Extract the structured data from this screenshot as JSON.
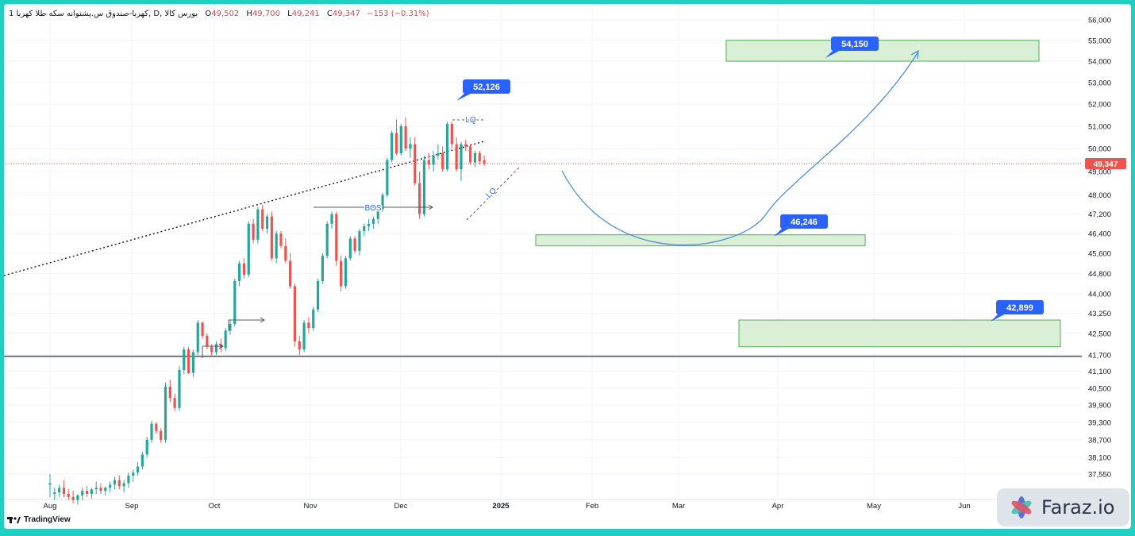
{
  "header": {
    "symbol": "1 کهربا-صندوق س.پشتوانه سکه طلا کهربا",
    "interval": "D",
    "exchange": "بورس کالا",
    "open": "49,502",
    "high": "49,700",
    "low": "49,241",
    "close": "49,347",
    "change": "−153 (−0.31%)"
  },
  "brand": {
    "tv": "TradingView",
    "site": "Faraz.io"
  },
  "colors": {
    "up": "#26a69a",
    "down": "#ef5350",
    "zone_fill": "#d9f0d6",
    "zone_border": "#4caf50",
    "callout": "#2962ff",
    "price_tag": "#ef5350"
  },
  "chart_data": {
    "type": "candlestick",
    "yscale": "log",
    "ylim": [
      37000,
      56000
    ],
    "x_tick_labels": [
      "Aug",
      "Sep",
      "Oct",
      "Nov",
      "Dec",
      "2025",
      "Feb",
      "Mar",
      "Apr",
      "May",
      "Jun"
    ],
    "y_tick_labels": [
      "56,000",
      "55,000",
      "54,000",
      "53,000",
      "52,000",
      "51,000",
      "50,000",
      "49,000",
      "48,000",
      "47,200",
      "46,400",
      "45,600",
      "44,800",
      "44,000",
      "43,250",
      "42,500",
      "41,700",
      "41,100",
      "40,500",
      "39,900",
      "39,300",
      "38,700",
      "38,100",
      "37,550"
    ],
    "last_price": "49,347",
    "candles": [
      [
        37200,
        37550,
        36800,
        37250
      ],
      [
        36900,
        37100,
        36700,
        36950
      ],
      [
        36950,
        37200,
        36800,
        37100
      ],
      [
        37100,
        37350,
        36800,
        36900
      ],
      [
        36900,
        37050,
        36700,
        36800
      ],
      [
        36800,
        37000,
        36600,
        36700
      ],
      [
        36700,
        36900,
        36550,
        36850
      ],
      [
        36850,
        37100,
        36700,
        37000
      ],
      [
        37000,
        37150,
        36800,
        36900
      ],
      [
        36900,
        37100,
        36750,
        37050
      ],
      [
        37050,
        37300,
        36900,
        37100
      ],
      [
        37100,
        37250,
        36900,
        37000
      ],
      [
        37000,
        37150,
        36850,
        37100
      ],
      [
        37100,
        37300,
        36950,
        37200
      ],
      [
        37200,
        37450,
        37050,
        37350
      ],
      [
        37350,
        37500,
        37050,
        37150
      ],
      [
        37150,
        37350,
        36950,
        37250
      ],
      [
        37250,
        37600,
        37100,
        37500
      ],
      [
        37500,
        37700,
        37300,
        37600
      ],
      [
        37600,
        37950,
        37500,
        37800
      ],
      [
        37800,
        38300,
        37700,
        38200
      ],
      [
        38200,
        38800,
        38100,
        38700
      ],
      [
        38700,
        39350,
        38600,
        39250
      ],
      [
        39250,
        39300,
        38900,
        39000
      ],
      [
        39000,
        39100,
        38600,
        38700
      ],
      [
        38700,
        40700,
        38600,
        40550
      ],
      [
        40550,
        40800,
        40000,
        40150
      ],
      [
        40150,
        40300,
        39700,
        39800
      ],
      [
        39800,
        41300,
        39700,
        41150
      ],
      [
        41150,
        42000,
        41000,
        41900
      ],
      [
        41900,
        42000,
        41000,
        41050
      ],
      [
        41050,
        41900,
        40900,
        41800
      ],
      [
        41800,
        43000,
        41700,
        42900
      ],
      [
        42900,
        42950,
        42300,
        42400
      ],
      [
        42400,
        42500,
        41900,
        42000
      ],
      [
        42000,
        42100,
        41650,
        41800
      ],
      [
        41800,
        42200,
        41700,
        42100
      ],
      [
        42100,
        42300,
        41800,
        41950
      ],
      [
        41950,
        42700,
        41850,
        42600
      ],
      [
        42600,
        43000,
        42450,
        42850
      ],
      [
        42850,
        44600,
        42750,
        44500
      ],
      [
        44500,
        45300,
        44300,
        45200
      ],
      [
        45200,
        45400,
        44600,
        44750
      ],
      [
        44750,
        46900,
        44650,
        46800
      ],
      [
        46800,
        47000,
        46000,
        46150
      ],
      [
        46150,
        47500,
        46000,
        47400
      ],
      [
        47400,
        47600,
        46500,
        46600
      ],
      [
        46600,
        47200,
        46400,
        47100
      ],
      [
        47100,
        47300,
        45300,
        45400
      ],
      [
        45400,
        46500,
        45200,
        46400
      ],
      [
        46400,
        46500,
        45800,
        45900
      ],
      [
        45900,
        46200,
        45200,
        45300
      ],
      [
        45300,
        45600,
        44200,
        44300
      ],
      [
        44300,
        44400,
        42000,
        42200
      ],
      [
        42200,
        42400,
        41700,
        41900
      ],
      [
        41900,
        43000,
        41800,
        42900
      ],
      [
        42900,
        43100,
        42500,
        42700
      ],
      [
        42700,
        43500,
        42600,
        43400
      ],
      [
        43400,
        44600,
        43300,
        44500
      ],
      [
        44500,
        45600,
        44400,
        45500
      ],
      [
        45500,
        46900,
        45400,
        46800
      ],
      [
        46800,
        47300,
        46600,
        47200
      ],
      [
        47200,
        47300,
        45100,
        45300
      ],
      [
        45300,
        45500,
        44100,
        44300
      ],
      [
        44300,
        45500,
        44200,
        45400
      ],
      [
        45400,
        46300,
        45300,
        46200
      ],
      [
        46200,
        46300,
        45600,
        45700
      ],
      [
        45700,
        46600,
        45500,
        46500
      ],
      [
        46500,
        46800,
        46300,
        46700
      ],
      [
        46700,
        47000,
        46500,
        46800
      ],
      [
        46800,
        47100,
        46600,
        47000
      ],
      [
        47000,
        47500,
        46800,
        47400
      ],
      [
        47400,
        48100,
        47300,
        48000
      ],
      [
        48000,
        49600,
        47900,
        49500
      ],
      [
        49500,
        50800,
        49400,
        50700
      ],
      [
        50700,
        51300,
        49700,
        49800
      ],
      [
        49800,
        51100,
        49700,
        51000
      ],
      [
        51000,
        51400,
        49900,
        50000
      ],
      [
        50000,
        50500,
        49600,
        50200
      ],
      [
        50200,
        50500,
        48400,
        48500
      ],
      [
        48500,
        49000,
        47000,
        47200
      ],
      [
        47200,
        49700,
        47100,
        49500
      ],
      [
        49500,
        49800,
        49100,
        49300
      ],
      [
        49300,
        49900,
        49000,
        49700
      ],
      [
        49700,
        50200,
        49500,
        49800
      ],
      [
        49800,
        50100,
        49000,
        49100
      ],
      [
        49100,
        51200,
        49000,
        51100
      ],
      [
        51100,
        51200,
        50000,
        50200
      ],
      [
        50200,
        50500,
        49000,
        49100
      ],
      [
        49100,
        50300,
        48600,
        50200
      ],
      [
        50200,
        50400,
        49900,
        50100
      ],
      [
        50100,
        50200,
        49300,
        49400
      ],
      [
        49400,
        49900,
        49200,
        49800
      ],
      [
        49800,
        49900,
        49300,
        49450
      ],
      [
        49502,
        49700,
        49241,
        49347
      ]
    ],
    "zones": [
      {
        "label": "54,150",
        "low": 54000,
        "high": 55000
      },
      {
        "label": "46,246",
        "low": 45900,
        "high": 46350
      },
      {
        "label": "42,899",
        "low": 42000,
        "high": 43000
      }
    ],
    "callouts": [
      "52,126"
    ],
    "horizontal_levels": [
      41650
    ],
    "annotations": [
      "BOS",
      "LQ",
      "LQ"
    ]
  }
}
